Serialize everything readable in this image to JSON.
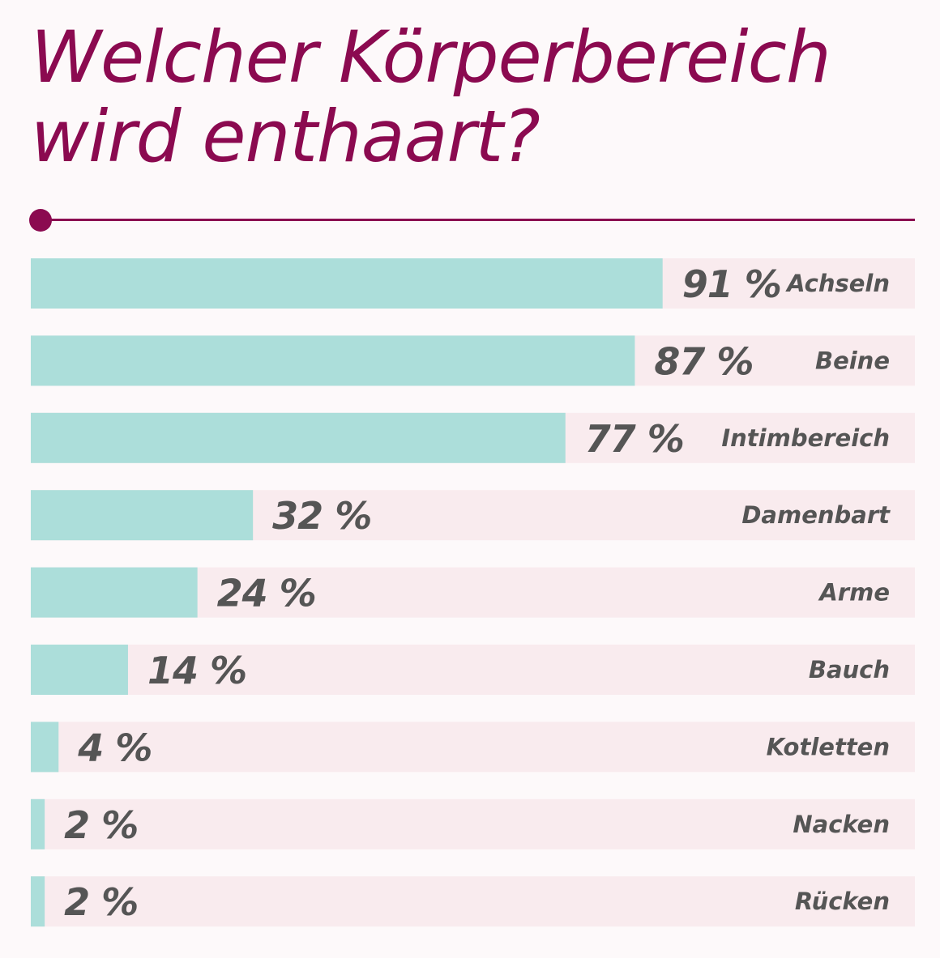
{
  "title_lines": [
    "Welcher Körperbereich",
    "wird enthaart?"
  ],
  "colors": {
    "title": "#8b0a50",
    "bar": "#acdeda",
    "track": "#f9ebee",
    "label": "#555555"
  },
  "chart_data": {
    "type": "bar",
    "orientation": "horizontal",
    "title": "Welcher Körperbereich wird enthaart?",
    "categories": [
      "Achseln",
      "Beine",
      "Intimbereich",
      "Damenbart",
      "Arme",
      "Bauch",
      "Kotletten",
      "Nacken",
      "Rücken"
    ],
    "values": [
      91,
      87,
      77,
      32,
      24,
      14,
      4,
      2,
      2
    ],
    "value_labels": [
      "91 %",
      "87 %",
      "77 %",
      "32 %",
      "24 %",
      "14 %",
      "4 %",
      "2 %",
      "2 %"
    ],
    "xlim": [
      0,
      100
    ],
    "grid": false,
    "legend": "none"
  }
}
